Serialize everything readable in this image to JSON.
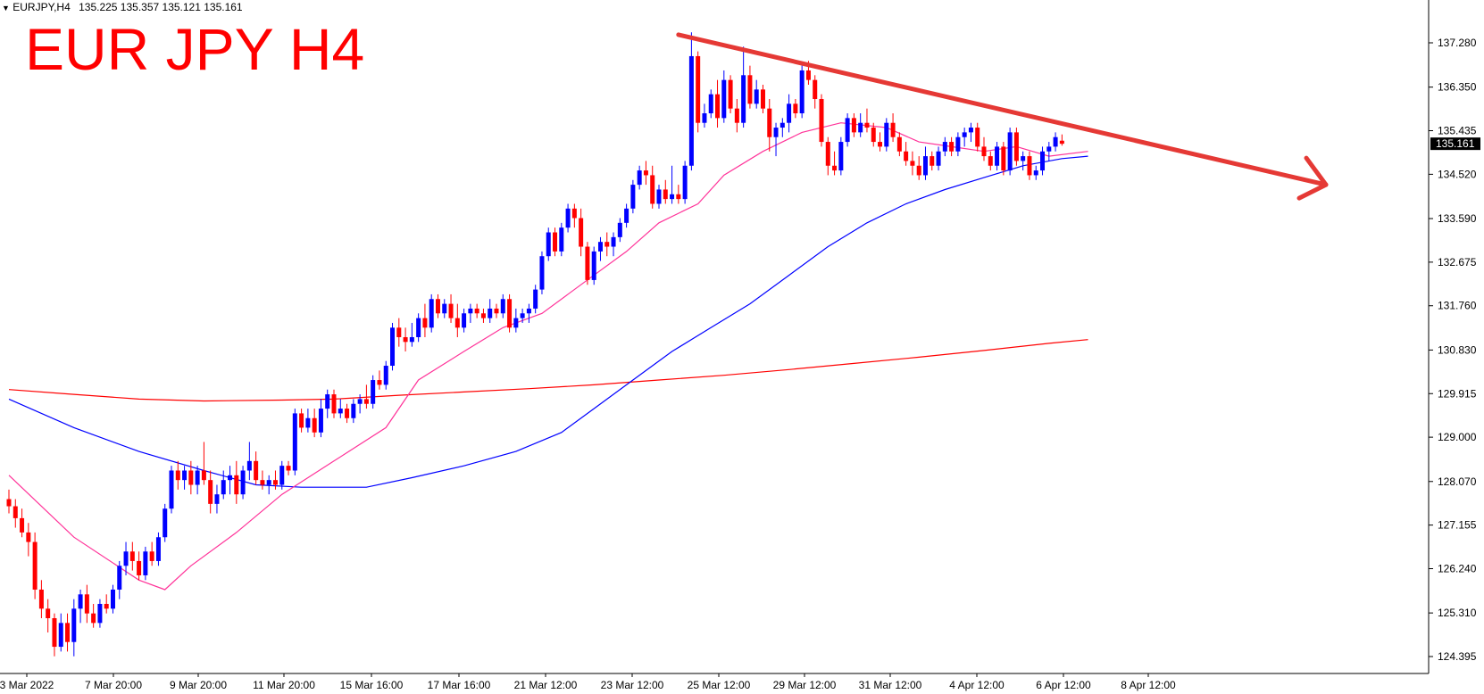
{
  "header": {
    "dropdown_icon": "triangle-down-icon",
    "symbol": "EURJPY,H4",
    "ohlc": "135.225 135.357 135.121 135.161"
  },
  "overlay_title": "EUR JPY H4",
  "price_badge": "135.161",
  "colors": {
    "bull": "#0000ff",
    "bear": "#ff0000",
    "ma_fast": "#ff3399",
    "ma_mid": "#0000ff",
    "ma_slow": "#ff0000",
    "trendline": "#e53935",
    "badge_bg": "#000000"
  },
  "chart_data": {
    "type": "candlestick",
    "y_ticks": [
      "137.280",
      "136.350",
      "135.435",
      "134.520",
      "133.590",
      "132.675",
      "131.760",
      "130.830",
      "129.915",
      "129.000",
      "128.070",
      "127.155",
      "126.240",
      "125.310",
      "124.395"
    ],
    "x_ticks": [
      "3 Mar 2022",
      "7 Mar 20:00",
      "9 Mar 20:00",
      "11 Mar 20:00",
      "15 Mar 16:00",
      "17 Mar 16:00",
      "21 Mar 12:00",
      "23 Mar 12:00",
      "25 Mar 12:00",
      "29 Mar 12:00",
      "31 Mar 12:00",
      "4 Apr 12:00",
      "6 Apr 12:00",
      "8 Apr 12:00"
    ],
    "ylim": [
      124.1,
      137.6
    ],
    "last_close": 135.161,
    "annotation": "descending trendline from the 25 Mar high with an arrow projecting lower",
    "candles": [
      [
        127.7,
        127.9,
        127.4,
        127.55
      ],
      [
        127.55,
        127.7,
        127.1,
        127.3
      ],
      [
        127.3,
        127.5,
        126.9,
        127.0
      ],
      [
        127.0,
        127.2,
        126.5,
        126.8
      ],
      [
        126.8,
        127.0,
        125.6,
        125.8
      ],
      [
        125.8,
        126.0,
        125.2,
        125.4
      ],
      [
        125.4,
        125.6,
        124.9,
        125.2
      ],
      [
        125.2,
        125.3,
        124.4,
        124.6
      ],
      [
        124.6,
        125.3,
        124.5,
        125.1
      ],
      [
        125.1,
        125.3,
        124.5,
        124.7
      ],
      [
        124.7,
        125.6,
        124.4,
        125.4
      ],
      [
        125.4,
        125.8,
        125.1,
        125.7
      ],
      [
        125.7,
        125.9,
        125.1,
        125.3
      ],
      [
        125.3,
        125.5,
        125.0,
        125.1
      ],
      [
        125.1,
        125.6,
        125.0,
        125.5
      ],
      [
        125.5,
        125.7,
        125.3,
        125.4
      ],
      [
        125.4,
        125.9,
        125.3,
        125.8
      ],
      [
        125.8,
        126.4,
        125.6,
        126.3
      ],
      [
        126.3,
        126.8,
        126.1,
        126.6
      ],
      [
        126.6,
        126.8,
        126.2,
        126.4
      ],
      [
        126.4,
        126.6,
        126.0,
        126.1
      ],
      [
        126.1,
        126.7,
        126.0,
        126.6
      ],
      [
        126.6,
        126.8,
        126.3,
        126.4
      ],
      [
        126.4,
        127.0,
        126.3,
        126.9
      ],
      [
        126.9,
        127.6,
        126.8,
        127.5
      ],
      [
        127.5,
        128.4,
        127.4,
        128.3
      ],
      [
        128.3,
        128.5,
        127.9,
        128.1
      ],
      [
        128.1,
        128.4,
        127.9,
        128.3
      ],
      [
        128.3,
        128.5,
        127.8,
        128.0
      ],
      [
        128.0,
        128.4,
        127.8,
        128.3
      ],
      [
        128.3,
        128.9,
        128.0,
        128.1
      ],
      [
        128.1,
        128.3,
        127.4,
        127.6
      ],
      [
        127.6,
        128.0,
        127.4,
        127.8
      ],
      [
        127.8,
        128.3,
        127.7,
        128.1
      ],
      [
        128.1,
        128.4,
        127.8,
        128.2
      ],
      [
        128.2,
        128.5,
        127.6,
        127.8
      ],
      [
        127.8,
        128.4,
        127.7,
        128.3
      ],
      [
        128.3,
        128.9,
        128.1,
        128.5
      ],
      [
        128.5,
        128.7,
        128.0,
        128.1
      ],
      [
        128.1,
        128.3,
        127.9,
        128.0
      ],
      [
        128.0,
        128.2,
        127.8,
        128.1
      ],
      [
        128.1,
        128.3,
        127.9,
        128.0
      ],
      [
        128.0,
        128.5,
        127.9,
        128.4
      ],
      [
        128.4,
        128.5,
        128.2,
        128.3
      ],
      [
        128.3,
        129.6,
        128.2,
        129.5
      ],
      [
        129.5,
        129.6,
        129.1,
        129.2
      ],
      [
        129.2,
        129.6,
        129.1,
        129.4
      ],
      [
        129.4,
        129.6,
        129.0,
        129.1
      ],
      [
        129.1,
        129.8,
        129.0,
        129.6
      ],
      [
        129.6,
        130.0,
        129.4,
        129.9
      ],
      [
        129.9,
        130.0,
        129.4,
        129.5
      ],
      [
        129.5,
        129.8,
        129.4,
        129.6
      ],
      [
        129.6,
        129.7,
        129.3,
        129.4
      ],
      [
        129.4,
        129.8,
        129.3,
        129.7
      ],
      [
        129.7,
        129.9,
        129.5,
        129.8
      ],
      [
        129.8,
        130.1,
        129.6,
        129.7
      ],
      [
        129.7,
        130.3,
        129.6,
        130.2
      ],
      [
        130.2,
        130.4,
        130.0,
        130.1
      ],
      [
        130.1,
        130.6,
        130.0,
        130.5
      ],
      [
        130.5,
        131.4,
        130.4,
        131.3
      ],
      [
        131.3,
        131.5,
        130.9,
        131.1
      ],
      [
        131.1,
        131.3,
        130.8,
        131.0
      ],
      [
        131.0,
        131.4,
        130.9,
        131.1
      ],
      [
        131.1,
        131.6,
        131.0,
        131.5
      ],
      [
        131.5,
        131.8,
        131.1,
        131.3
      ],
      [
        131.3,
        132.0,
        131.2,
        131.9
      ],
      [
        131.9,
        132.0,
        131.5,
        131.6
      ],
      [
        131.6,
        131.9,
        131.5,
        131.8
      ],
      [
        131.8,
        132.0,
        131.4,
        131.5
      ],
      [
        131.5,
        131.8,
        131.1,
        131.3
      ],
      [
        131.3,
        131.7,
        131.2,
        131.6
      ],
      [
        131.6,
        131.8,
        131.4,
        131.7
      ],
      [
        131.7,
        131.8,
        131.5,
        131.6
      ],
      [
        131.6,
        131.7,
        131.4,
        131.5
      ],
      [
        131.5,
        131.9,
        131.4,
        131.7
      ],
      [
        131.7,
        131.8,
        131.5,
        131.6
      ],
      [
        131.6,
        132.0,
        131.5,
        131.9
      ],
      [
        131.9,
        132.0,
        131.2,
        131.3
      ],
      [
        131.3,
        131.7,
        131.2,
        131.5
      ],
      [
        131.5,
        131.7,
        131.4,
        131.6
      ],
      [
        131.6,
        131.8,
        131.4,
        131.7
      ],
      [
        131.7,
        132.2,
        131.6,
        132.1
      ],
      [
        132.1,
        132.9,
        132.0,
        132.8
      ],
      [
        132.8,
        133.4,
        132.7,
        133.3
      ],
      [
        133.3,
        133.4,
        132.8,
        132.9
      ],
      [
        132.9,
        133.5,
        132.8,
        133.4
      ],
      [
        133.4,
        133.9,
        133.3,
        133.8
      ],
      [
        133.8,
        133.9,
        133.4,
        133.6
      ],
      [
        133.6,
        133.8,
        132.8,
        133.0
      ],
      [
        133.0,
        133.1,
        132.2,
        132.3
      ],
      [
        132.3,
        133.0,
        132.2,
        132.9
      ],
      [
        132.9,
        133.2,
        132.7,
        133.1
      ],
      [
        133.1,
        133.3,
        132.8,
        133.0
      ],
      [
        133.0,
        133.3,
        132.8,
        133.2
      ],
      [
        133.2,
        133.6,
        133.1,
        133.5
      ],
      [
        133.5,
        133.9,
        133.4,
        133.8
      ],
      [
        133.8,
        134.4,
        133.7,
        134.3
      ],
      [
        134.3,
        134.7,
        134.2,
        134.6
      ],
      [
        134.6,
        134.8,
        134.3,
        134.5
      ],
      [
        134.5,
        134.7,
        133.8,
        133.9
      ],
      [
        133.9,
        134.3,
        133.8,
        134.2
      ],
      [
        134.2,
        134.4,
        133.9,
        134.0
      ],
      [
        134.0,
        134.7,
        133.9,
        134.1
      ],
      [
        134.1,
        134.3,
        133.9,
        134.0
      ],
      [
        134.0,
        134.8,
        133.9,
        134.7
      ],
      [
        134.7,
        137.5,
        134.6,
        137.0
      ],
      [
        137.0,
        137.1,
        135.4,
        135.6
      ],
      [
        135.6,
        136.0,
        135.5,
        135.8
      ],
      [
        135.8,
        136.3,
        135.7,
        136.2
      ],
      [
        136.2,
        136.5,
        135.5,
        135.7
      ],
      [
        135.7,
        136.7,
        135.6,
        136.5
      ],
      [
        136.5,
        136.6,
        135.8,
        135.9
      ],
      [
        135.9,
        136.1,
        135.4,
        135.6
      ],
      [
        135.6,
        137.2,
        135.5,
        136.6
      ],
      [
        136.6,
        136.8,
        135.9,
        136.0
      ],
      [
        136.0,
        136.5,
        135.9,
        136.3
      ],
      [
        136.3,
        136.4,
        135.8,
        135.9
      ],
      [
        135.9,
        136.1,
        135.0,
        135.3
      ],
      [
        135.3,
        135.6,
        134.9,
        135.5
      ],
      [
        135.5,
        135.7,
        135.3,
        135.6
      ],
      [
        135.6,
        136.2,
        135.4,
        136.0
      ],
      [
        136.0,
        136.1,
        135.7,
        135.8
      ],
      [
        135.8,
        136.8,
        135.7,
        136.7
      ],
      [
        136.7,
        136.9,
        136.4,
        136.5
      ],
      [
        136.5,
        136.6,
        135.9,
        136.1
      ],
      [
        136.1,
        136.2,
        135.1,
        135.2
      ],
      [
        135.2,
        135.3,
        134.5,
        134.7
      ],
      [
        134.7,
        135.0,
        134.5,
        134.6
      ],
      [
        134.6,
        135.3,
        134.5,
        135.2
      ],
      [
        135.2,
        135.8,
        135.1,
        135.7
      ],
      [
        135.7,
        135.8,
        135.3,
        135.4
      ],
      [
        135.4,
        135.8,
        135.3,
        135.6
      ],
      [
        135.6,
        135.9,
        135.4,
        135.5
      ],
      [
        135.5,
        135.6,
        135.1,
        135.2
      ],
      [
        135.2,
        135.4,
        135.0,
        135.1
      ],
      [
        135.1,
        135.7,
        135.0,
        135.6
      ],
      [
        135.6,
        135.8,
        135.2,
        135.3
      ],
      [
        135.3,
        135.4,
        134.9,
        135.0
      ],
      [
        135.0,
        135.2,
        134.7,
        134.8
      ],
      [
        134.8,
        135.0,
        134.5,
        134.7
      ],
      [
        134.7,
        134.9,
        134.4,
        134.5
      ],
      [
        134.5,
        135.1,
        134.4,
        134.9
      ],
      [
        134.9,
        135.0,
        134.6,
        134.7
      ],
      [
        134.7,
        135.1,
        134.6,
        135.0
      ],
      [
        135.0,
        135.3,
        134.9,
        135.2
      ],
      [
        135.2,
        135.3,
        134.9,
        135.0
      ],
      [
        135.0,
        135.4,
        134.9,
        135.3
      ],
      [
        135.3,
        135.5,
        135.1,
        135.4
      ],
      [
        135.4,
        135.6,
        135.2,
        135.5
      ],
      [
        135.5,
        135.6,
        135.0,
        135.1
      ],
      [
        135.1,
        135.3,
        134.8,
        134.9
      ],
      [
        134.9,
        135.0,
        134.6,
        134.7
      ],
      [
        134.7,
        135.2,
        134.6,
        135.1
      ],
      [
        135.1,
        135.2,
        134.5,
        134.6
      ],
      [
        134.6,
        135.5,
        134.5,
        135.4
      ],
      [
        135.4,
        135.5,
        134.7,
        134.8
      ],
      [
        134.8,
        135.0,
        134.6,
        134.9
      ],
      [
        134.9,
        135.0,
        134.4,
        134.5
      ],
      [
        134.5,
        134.7,
        134.4,
        134.6
      ],
      [
        134.6,
        135.1,
        134.5,
        135.0
      ],
      [
        135.0,
        135.2,
        134.8,
        135.1
      ],
      [
        135.1,
        135.4,
        135.0,
        135.3
      ],
      [
        135.225,
        135.357,
        135.121,
        135.161
      ]
    ],
    "ma_fast": [
      [
        0,
        128.2
      ],
      [
        10,
        126.9
      ],
      [
        20,
        126.0
      ],
      [
        24,
        125.8
      ],
      [
        28,
        126.3
      ],
      [
        35,
        127.0
      ],
      [
        42,
        127.8
      ],
      [
        50,
        128.5
      ],
      [
        58,
        129.2
      ],
      [
        63,
        130.2
      ],
      [
        70,
        130.8
      ],
      [
        76,
        131.3
      ],
      [
        82,
        131.6
      ],
      [
        88,
        132.2
      ],
      [
        95,
        132.9
      ],
      [
        100,
        133.5
      ],
      [
        106,
        133.9
      ],
      [
        110,
        134.5
      ],
      [
        116,
        135.0
      ],
      [
        122,
        135.4
      ],
      [
        128,
        135.6
      ],
      [
        135,
        135.5
      ],
      [
        140,
        135.2
      ],
      [
        145,
        135.1
      ],
      [
        150,
        135.0
      ],
      [
        155,
        135.1
      ],
      [
        160,
        134.9
      ],
      [
        166,
        135.0
      ]
    ],
    "ma_mid": [
      [
        0,
        129.8
      ],
      [
        10,
        129.2
      ],
      [
        20,
        128.7
      ],
      [
        30,
        128.3
      ],
      [
        38,
        128.0
      ],
      [
        45,
        127.95
      ],
      [
        55,
        127.95
      ],
      [
        62,
        128.15
      ],
      [
        70,
        128.4
      ],
      [
        78,
        128.7
      ],
      [
        85,
        129.1
      ],
      [
        90,
        129.6
      ],
      [
        96,
        130.2
      ],
      [
        102,
        130.8
      ],
      [
        108,
        131.3
      ],
      [
        114,
        131.8
      ],
      [
        120,
        132.4
      ],
      [
        126,
        133.0
      ],
      [
        132,
        133.5
      ],
      [
        138,
        133.9
      ],
      [
        144,
        134.2
      ],
      [
        150,
        134.45
      ],
      [
        156,
        134.7
      ],
      [
        162,
        134.85
      ],
      [
        166,
        134.9
      ]
    ],
    "ma_slow": [
      [
        0,
        130.0
      ],
      [
        10,
        129.9
      ],
      [
        20,
        129.8
      ],
      [
        30,
        129.76
      ],
      [
        42,
        129.78
      ],
      [
        50,
        129.8
      ],
      [
        60,
        129.88
      ],
      [
        70,
        129.95
      ],
      [
        80,
        130.02
      ],
      [
        90,
        130.1
      ],
      [
        100,
        130.2
      ],
      [
        110,
        130.3
      ],
      [
        120,
        130.42
      ],
      [
        130,
        130.55
      ],
      [
        140,
        130.68
      ],
      [
        150,
        130.82
      ],
      [
        160,
        130.97
      ],
      [
        166,
        131.05
      ]
    ]
  }
}
